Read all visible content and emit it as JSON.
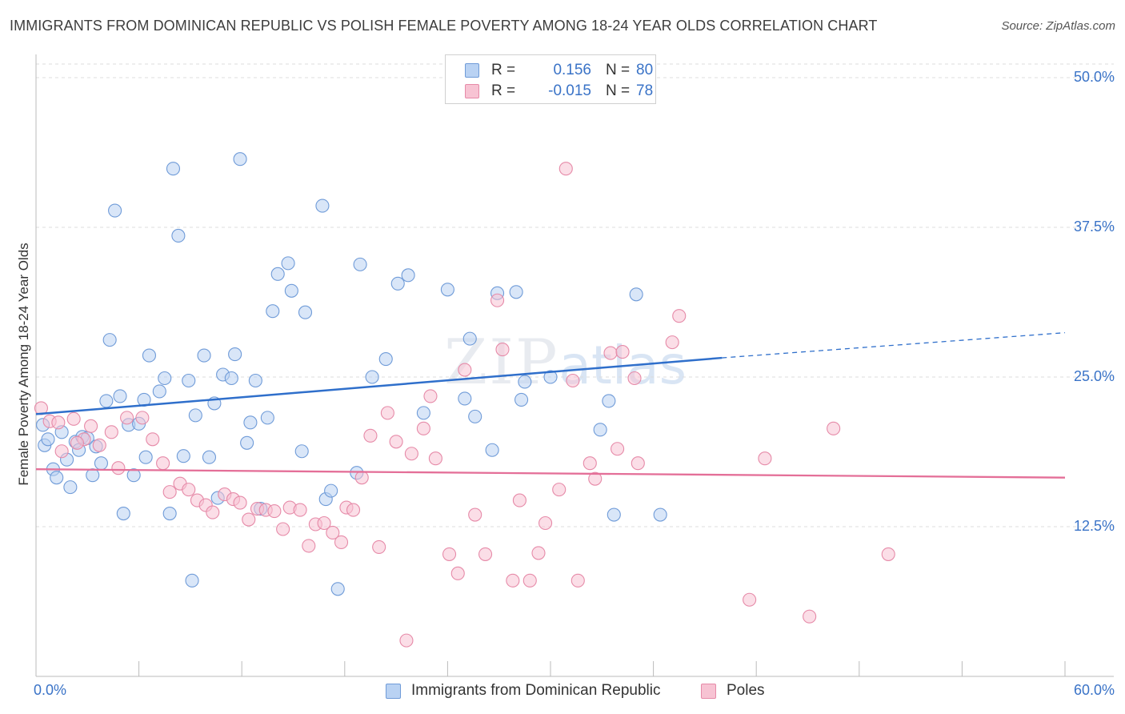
{
  "header": {
    "title": "IMMIGRANTS FROM DOMINICAN REPUBLIC VS POLISH FEMALE POVERTY AMONG 18-24 YEAR OLDS CORRELATION CHART",
    "source": "Source: ZipAtlas.com"
  },
  "watermark": {
    "zip": "ZIP",
    "atlas": "atlas"
  },
  "colors": {
    "blue_fill": "#b9d2f3",
    "blue_stroke": "#6f9bd8",
    "blue_line": "#2f6fcb",
    "pink_fill": "#f7c3d3",
    "pink_stroke": "#e68aa8",
    "pink_line": "#e46f98",
    "grid": "#dcdcdc",
    "tick_text": "#3a73c7"
  },
  "legend_top": {
    "rows": [
      {
        "r_label": "R =",
        "r_value": "0.156",
        "n_label": "N =",
        "n_value": "80"
      },
      {
        "r_label": "R =",
        "r_value": "-0.015",
        "n_label": "N =",
        "n_value": "78"
      }
    ]
  },
  "chart_data": {
    "type": "scatter",
    "title": "IMMIGRANTS FROM DOMINICAN REPUBLIC VS POLISH FEMALE POVERTY AMONG 18-24 YEAR OLDS CORRELATION CHART",
    "xlabel": "",
    "ylabel": "Female Poverty Among 18-24 Year Olds",
    "xlim": [
      0,
      60
    ],
    "ylim": [
      0,
      50
    ],
    "x_tick_labels": [
      {
        "value": 0,
        "label": "0.0%"
      },
      {
        "value": 60,
        "label": "60.0%"
      }
    ],
    "y_tick_labels": [
      {
        "value": 12.5,
        "label": "12.5%"
      },
      {
        "value": 25,
        "label": "25.0%"
      },
      {
        "value": 37.5,
        "label": "37.5%"
      },
      {
        "value": 50,
        "label": "50.0%"
      }
    ],
    "grid": "horizontal dashed",
    "legend_position": "bottom-center",
    "series": [
      {
        "name": "Immigrants from Dominican Republic",
        "color": "#b9d2f3",
        "trend": {
          "x": [
            0,
            40
          ],
          "y": [
            21.9,
            26.6
          ],
          "dashed_extension_to_x": 60,
          "dashed_end_y": 28.7
        },
        "points": [
          [
            0.4,
            21.0
          ],
          [
            0.5,
            19.3
          ],
          [
            0.7,
            19.8
          ],
          [
            1.0,
            17.3
          ],
          [
            1.2,
            16.6
          ],
          [
            1.5,
            20.4
          ],
          [
            1.8,
            18.1
          ],
          [
            2.0,
            15.8
          ],
          [
            2.3,
            19.6
          ],
          [
            2.5,
            18.9
          ],
          [
            2.7,
            20.0
          ],
          [
            3.0,
            19.9
          ],
          [
            3.3,
            16.8
          ],
          [
            3.8,
            17.8
          ],
          [
            4.1,
            23.0
          ],
          [
            4.3,
            28.1
          ],
          [
            4.6,
            38.9
          ],
          [
            4.9,
            23.4
          ],
          [
            5.1,
            13.6
          ],
          [
            5.4,
            21.0
          ],
          [
            5.7,
            16.8
          ],
          [
            6.0,
            21.1
          ],
          [
            6.3,
            23.1
          ],
          [
            6.4,
            18.3
          ],
          [
            6.6,
            26.8
          ],
          [
            7.2,
            23.8
          ],
          [
            7.5,
            24.9
          ],
          [
            7.8,
            13.6
          ],
          [
            8.0,
            42.4
          ],
          [
            8.3,
            36.8
          ],
          [
            8.6,
            18.4
          ],
          [
            8.9,
            24.7
          ],
          [
            9.1,
            8.0
          ],
          [
            9.3,
            21.8
          ],
          [
            9.8,
            26.8
          ],
          [
            10.1,
            18.3
          ],
          [
            10.4,
            22.8
          ],
          [
            10.6,
            14.9
          ],
          [
            10.9,
            25.2
          ],
          [
            11.4,
            24.9
          ],
          [
            11.6,
            26.9
          ],
          [
            11.9,
            43.2
          ],
          [
            12.3,
            19.5
          ],
          [
            12.5,
            21.2
          ],
          [
            12.8,
            24.7
          ],
          [
            13.1,
            14.0
          ],
          [
            13.5,
            21.6
          ],
          [
            13.8,
            30.5
          ],
          [
            14.1,
            33.6
          ],
          [
            14.7,
            34.5
          ],
          [
            14.9,
            32.2
          ],
          [
            15.5,
            18.8
          ],
          [
            15.7,
            30.4
          ],
          [
            16.7,
            39.3
          ],
          [
            16.9,
            14.8
          ],
          [
            17.2,
            15.5
          ],
          [
            17.6,
            7.3
          ],
          [
            18.7,
            17.0
          ],
          [
            18.9,
            34.4
          ],
          [
            19.6,
            25.0
          ],
          [
            20.4,
            26.5
          ],
          [
            21.1,
            32.8
          ],
          [
            21.7,
            33.5
          ],
          [
            22.6,
            22.0
          ],
          [
            24.0,
            32.3
          ],
          [
            25.0,
            23.2
          ],
          [
            25.3,
            28.2
          ],
          [
            25.6,
            21.7
          ],
          [
            26.6,
            18.9
          ],
          [
            26.9,
            32.0
          ],
          [
            28.0,
            32.1
          ],
          [
            28.3,
            23.1
          ],
          [
            28.5,
            24.6
          ],
          [
            30.0,
            25.0
          ],
          [
            32.9,
            20.6
          ],
          [
            33.4,
            23.0
          ],
          [
            33.7,
            13.5
          ],
          [
            35.0,
            31.9
          ],
          [
            36.4,
            13.5
          ],
          [
            3.5,
            19.2
          ]
        ]
      },
      {
        "name": "Poles",
        "color": "#f7c3d3",
        "trend": {
          "x": [
            0,
            60
          ],
          "y": [
            17.3,
            16.6
          ]
        },
        "points": [
          [
            0.3,
            22.4
          ],
          [
            0.8,
            21.3
          ],
          [
            1.3,
            21.2
          ],
          [
            2.2,
            21.5
          ],
          [
            2.8,
            19.8
          ],
          [
            3.2,
            20.9
          ],
          [
            3.7,
            19.3
          ],
          [
            4.4,
            20.4
          ],
          [
            4.8,
            17.4
          ],
          [
            5.3,
            21.6
          ],
          [
            6.2,
            21.6
          ],
          [
            6.8,
            19.8
          ],
          [
            7.4,
            17.8
          ],
          [
            7.8,
            15.4
          ],
          [
            8.4,
            16.1
          ],
          [
            8.9,
            15.6
          ],
          [
            9.4,
            14.7
          ],
          [
            9.9,
            14.3
          ],
          [
            10.3,
            13.7
          ],
          [
            11.0,
            15.2
          ],
          [
            11.5,
            14.8
          ],
          [
            11.9,
            14.5
          ],
          [
            12.4,
            13.1
          ],
          [
            12.9,
            14.0
          ],
          [
            13.4,
            13.9
          ],
          [
            13.9,
            13.8
          ],
          [
            14.4,
            12.3
          ],
          [
            14.8,
            14.1
          ],
          [
            15.4,
            13.9
          ],
          [
            15.9,
            10.9
          ],
          [
            16.3,
            12.7
          ],
          [
            16.8,
            12.8
          ],
          [
            17.3,
            12.0
          ],
          [
            17.8,
            11.2
          ],
          [
            18.1,
            14.1
          ],
          [
            18.5,
            13.9
          ],
          [
            19.0,
            16.6
          ],
          [
            19.5,
            20.1
          ],
          [
            20.0,
            10.8
          ],
          [
            20.5,
            22.0
          ],
          [
            21.0,
            19.6
          ],
          [
            21.6,
            3.0
          ],
          [
            21.9,
            18.6
          ],
          [
            22.6,
            20.7
          ],
          [
            23.0,
            23.4
          ],
          [
            23.3,
            18.2
          ],
          [
            24.1,
            10.2
          ],
          [
            24.6,
            8.6
          ],
          [
            25.0,
            25.6
          ],
          [
            25.6,
            13.5
          ],
          [
            26.2,
            10.2
          ],
          [
            26.9,
            31.4
          ],
          [
            27.2,
            27.3
          ],
          [
            27.8,
            8.0
          ],
          [
            28.2,
            14.7
          ],
          [
            28.8,
            8.0
          ],
          [
            29.3,
            10.3
          ],
          [
            29.7,
            12.8
          ],
          [
            30.5,
            15.6
          ],
          [
            30.9,
            42.4
          ],
          [
            31.3,
            24.7
          ],
          [
            31.6,
            8.0
          ],
          [
            32.3,
            17.8
          ],
          [
            32.6,
            16.5
          ],
          [
            33.5,
            27.0
          ],
          [
            33.9,
            19.0
          ],
          [
            34.2,
            27.1
          ],
          [
            34.9,
            24.9
          ],
          [
            35.1,
            17.8
          ],
          [
            37.1,
            27.9
          ],
          [
            37.5,
            30.1
          ],
          [
            41.6,
            6.4
          ],
          [
            42.5,
            18.2
          ],
          [
            45.1,
            5.0
          ],
          [
            46.5,
            20.7
          ],
          [
            49.7,
            10.2
          ],
          [
            2.4,
            19.5
          ],
          [
            1.5,
            18.8
          ]
        ]
      }
    ]
  },
  "axes": {
    "y_axis_title": "Female Poverty Among 18-24 Year Olds"
  }
}
